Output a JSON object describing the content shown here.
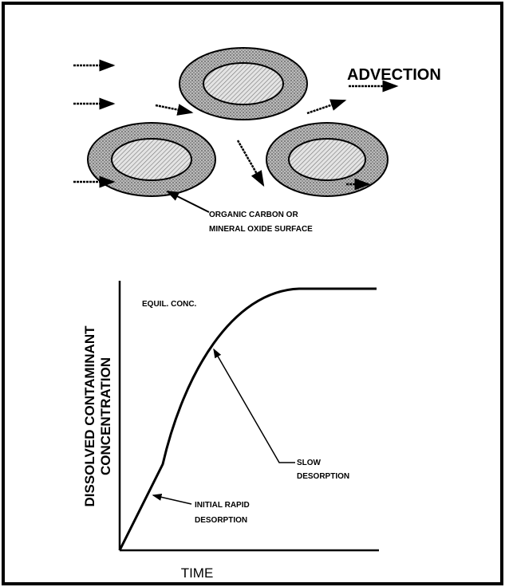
{
  "top_panel": {
    "label": "ADVECTION",
    "callout": [
      "ORGANIC CARBON OR",
      "MINERAL OXIDE SURFACE"
    ]
  },
  "graph": {
    "y_axis_label": [
      "DISSOLVED CONTAMINANT",
      "CONCENTRATION"
    ],
    "x_axis_label": "TIME",
    "annotations": {
      "equilibrium": "EQUIL. CONC.",
      "slow": [
        "SLOW",
        "DESORPTION"
      ],
      "initial": [
        "INITIAL RAPID",
        "DESORPTION"
      ]
    }
  }
}
